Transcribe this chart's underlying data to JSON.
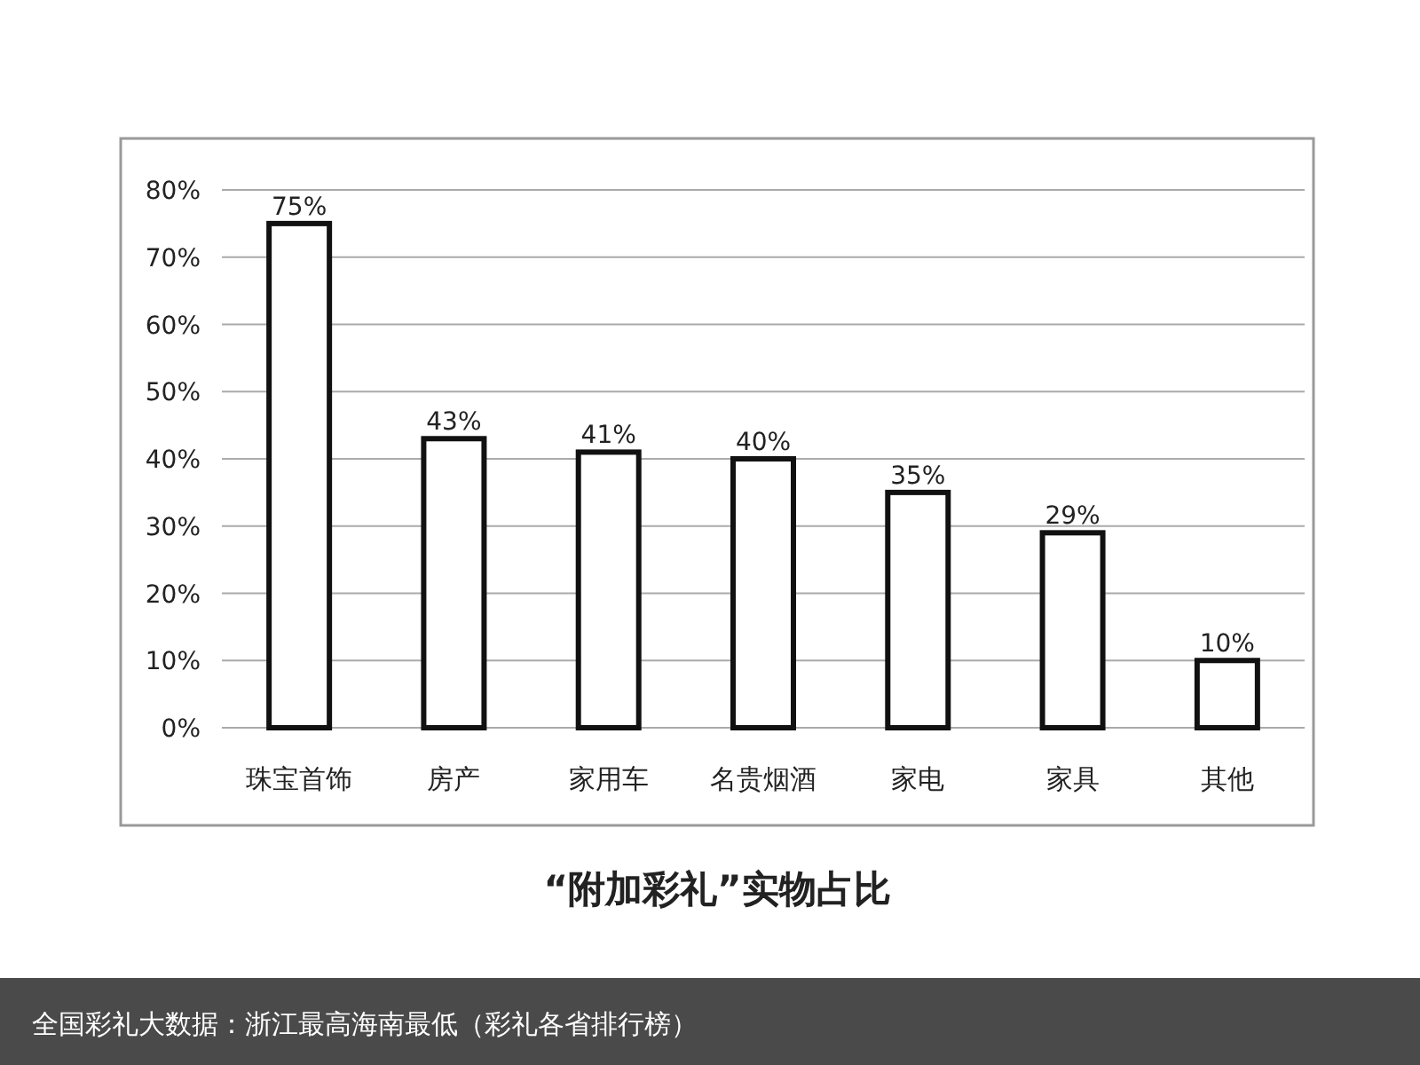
{
  "chart_data": {
    "type": "bar",
    "title": "“附加彩礼”实物占比",
    "categories": [
      "珠宝首饰",
      "房产",
      "家用车",
      "名贵烟酒",
      "家电",
      "家具",
      "其他"
    ],
    "values": [
      75,
      43,
      41,
      40,
      35,
      29,
      10
    ],
    "value_labels": [
      "75%",
      "43%",
      "41%",
      "40%",
      "35%",
      "29%",
      "10%"
    ],
    "color": "#ffffff",
    "ylim": [
      0,
      80
    ],
    "yticks": [
      {
        "value": 0,
        "label": "0%"
      },
      {
        "value": 10,
        "label": "10%"
      },
      {
        "value": 20,
        "label": "20%"
      },
      {
        "value": 30,
        "label": "30%"
      },
      {
        "value": 40,
        "label": "40%"
      },
      {
        "value": 50,
        "label": "50%"
      },
      {
        "value": 60,
        "label": "60%"
      },
      {
        "value": 70,
        "label": "70%"
      },
      {
        "value": 80,
        "label": "80%"
      }
    ],
    "grid": "y",
    "annotations": [
      "全国彩礼大数据：浙江最高海南最低（彩礼各省排行榜）"
    ]
  }
}
